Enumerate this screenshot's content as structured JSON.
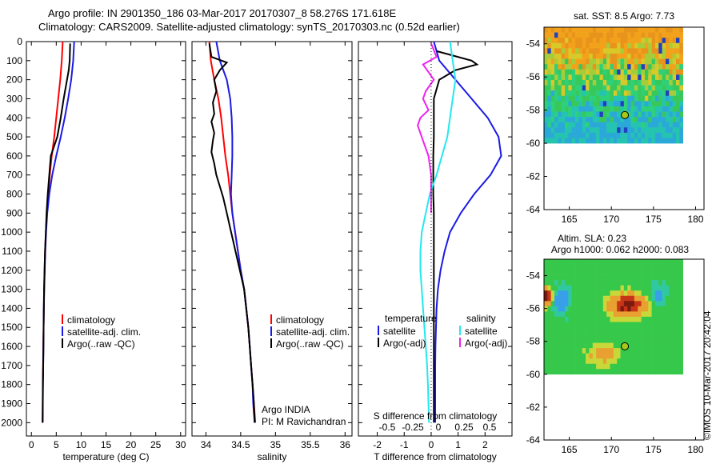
{
  "header": {
    "line1": "Argo profile: IN 2901350_186 03-Mar-2017 20170307_8 58.276S 171.618E",
    "line2": "Climatology: CARS2009. Satellite-adjusted climatology: synTS_20170303.nc (0.52d earlier)"
  },
  "colors": {
    "climatology": "#ff0000",
    "satellite": "#1a1ae6",
    "argo": "#000000",
    "sat_salinity": "#22e8ee",
    "argo_salinity_adj": "#ee22ee"
  },
  "depth_ticks": [
    0,
    100,
    200,
    300,
    400,
    500,
    600,
    700,
    800,
    900,
    1000,
    1100,
    1200,
    1300,
    1400,
    1500,
    1600,
    1700,
    1800,
    1900,
    2000
  ],
  "chart_data": [
    {
      "type": "line",
      "xlabel": "temperature (deg C)",
      "xlim": [
        -1,
        31
      ],
      "ylim": [
        2070,
        0
      ],
      "xticks": [
        0,
        5,
        10,
        15,
        20,
        25,
        30
      ],
      "legend": [
        "climatology",
        "satellite-adj. clim.",
        "Argo(..raw -QC)"
      ],
      "series": [
        {
          "name": "climatology",
          "color": "#ff0000",
          "x": [
            6.3,
            6.1,
            5.8,
            5.4,
            5.0,
            4.6,
            4.1,
            3.7,
            3.4,
            3.1,
            2.9,
            2.75,
            2.65,
            2.55,
            2.5,
            2.45,
            2.4,
            2.35,
            2.3,
            2.28,
            2.25
          ],
          "y": [
            0,
            100,
            200,
            300,
            400,
            500,
            600,
            700,
            800,
            900,
            1000,
            1100,
            1200,
            1300,
            1400,
            1500,
            1600,
            1700,
            1800,
            1900,
            2000
          ]
        },
        {
          "name": "satellite-adj. clim.",
          "color": "#1a1ae6",
          "x": [
            8.6,
            8.4,
            8.0,
            7.4,
            6.7,
            5.9,
            5.0,
            4.2,
            3.6,
            3.2,
            2.95,
            2.8,
            2.68,
            2.58,
            2.5,
            2.45,
            2.42,
            2.37,
            2.32,
            2.28,
            2.26
          ],
          "y": [
            0,
            100,
            200,
            300,
            400,
            500,
            600,
            700,
            800,
            900,
            1000,
            1100,
            1200,
            1300,
            1400,
            1500,
            1600,
            1700,
            1800,
            1900,
            2000
          ]
        },
        {
          "name": "Argo(..raw -QC)",
          "color": "#000000",
          "x": [
            7.8,
            7.7,
            7.5,
            6.5,
            5.9,
            5.2,
            3.9,
            3.6,
            3.3,
            3.05,
            2.9,
            2.75,
            2.65,
            2.55,
            2.5,
            2.45,
            2.42,
            2.38,
            2.33,
            2.3,
            2.27
          ],
          "y": [
            10,
            100,
            150,
            300,
            400,
            500,
            600,
            700,
            800,
            900,
            1000,
            1100,
            1200,
            1300,
            1400,
            1500,
            1600,
            1700,
            1800,
            1900,
            2000
          ]
        }
      ]
    },
    {
      "type": "line",
      "xlabel": "salinity",
      "xlim": [
        33.8,
        36.1
      ],
      "ylim": [
        2070,
        0
      ],
      "xticks": [
        34,
        34.5,
        35,
        35.5,
        36
      ],
      "legend": [
        "climatology",
        "satellite-adj. clim.",
        "Argo(..raw -QC)"
      ],
      "annotations": [
        "Argo INDIA",
        "PI: M Ravichandran"
      ],
      "series": [
        {
          "name": "climatology",
          "color": "#ff0000",
          "x": [
            34.05,
            34.07,
            34.12,
            34.18,
            34.22,
            34.25,
            34.28,
            34.32,
            34.35,
            34.38,
            34.42,
            34.46,
            34.5,
            34.55,
            34.58,
            34.61,
            34.63,
            34.65,
            34.67,
            34.69,
            34.71
          ],
          "y": [
            0,
            100,
            200,
            300,
            400,
            500,
            600,
            700,
            800,
            900,
            1000,
            1100,
            1200,
            1300,
            1400,
            1500,
            1600,
            1700,
            1800,
            1900,
            2000
          ]
        },
        {
          "name": "satellite-adj. clim.",
          "color": "#1a1ae6",
          "x": [
            34.15,
            34.2,
            34.3,
            34.35,
            34.37,
            34.38,
            34.38,
            34.37,
            34.36,
            34.38,
            34.42,
            34.46,
            34.5,
            34.55,
            34.58,
            34.61,
            34.63,
            34.65,
            34.67,
            34.68,
            34.7
          ],
          "y": [
            0,
            100,
            200,
            300,
            400,
            500,
            600,
            700,
            800,
            900,
            1000,
            1100,
            1200,
            1300,
            1400,
            1500,
            1600,
            1700,
            1800,
            1900,
            2000
          ]
        },
        {
          "name": "Argo(..raw -QC)",
          "color": "#000000",
          "x": [
            34.05,
            34.08,
            34.3,
            34.2,
            34.12,
            34.15,
            34.1,
            34.12,
            34.08,
            34.12,
            34.1,
            34.08,
            34.12,
            34.15,
            34.2,
            34.25,
            34.3,
            34.35,
            34.4,
            34.45,
            34.5,
            34.55,
            34.58,
            34.61,
            34.63,
            34.65,
            34.67,
            34.69,
            34.7
          ],
          "y": [
            10,
            80,
            110,
            150,
            200,
            260,
            320,
            380,
            420,
            480,
            520,
            580,
            640,
            700,
            760,
            820,
            900,
            980,
            1060,
            1140,
            1220,
            1300,
            1400,
            1500,
            1600,
            1700,
            1800,
            1900,
            2000
          ]
        }
      ]
    },
    {
      "type": "line",
      "xlabel": "T difference from climatology",
      "xlabel2": "S difference from climatology",
      "xlim": [
        -2.7,
        3.0
      ],
      "ylim": [
        2070,
        0
      ],
      "xticks": [
        -2,
        -1,
        0,
        1,
        2
      ],
      "xticks2": [
        "-0.5",
        "-0.25",
        "0",
        "0.25",
        "0.5"
      ],
      "legend": [
        "temperature",
        "satellite",
        "Argo(-adj)",
        "salinity",
        "satellite",
        "Argo(-adj)"
      ],
      "series": [
        {
          "name": "satellite",
          "color": "#1a1ae6",
          "x": [
            0.1,
            0.3,
            0.9,
            1.5,
            2.1,
            2.5,
            2.6,
            2.2,
            1.6,
            1.1,
            0.7,
            0.5,
            0.35,
            0.25,
            0.2,
            0.18,
            0.16,
            0.15,
            0.15,
            0.15,
            0.15
          ],
          "y": [
            0,
            100,
            200,
            300,
            400,
            500,
            600,
            700,
            800,
            900,
            1000,
            1100,
            1200,
            1300,
            1400,
            1500,
            1600,
            1700,
            1800,
            1900,
            2000
          ]
        },
        {
          "name": "Argo(-adj)",
          "color": "#000000",
          "x": [
            0.2,
            1.5,
            1.7,
            0.9,
            0.3,
            0.1,
            0.1,
            0.1,
            0.08,
            0.08,
            0.08,
            0.1,
            0.1,
            0.1,
            0.1,
            0.1,
            0.1,
            0.1,
            0.1,
            0.1
          ],
          "y": [
            50,
            100,
            120,
            150,
            200,
            300,
            400,
            500,
            600,
            700,
            800,
            900,
            1000,
            1200,
            1400,
            1600,
            1700,
            1800,
            1900,
            2000
          ]
        },
        {
          "name": "satellite",
          "color": "#22e8ee",
          "x": [
            0.7,
            0.8,
            0.9,
            0.8,
            0.7,
            0.6,
            0.4,
            0.2,
            -0.05,
            -0.2,
            -0.35,
            -0.4,
            -0.4,
            -0.35,
            -0.3,
            -0.25,
            -0.2,
            -0.15,
            -0.12,
            -0.1,
            -0.08
          ],
          "y": [
            0,
            100,
            200,
            300,
            400,
            500,
            600,
            700,
            800,
            900,
            1000,
            1100,
            1200,
            1300,
            1400,
            1500,
            1600,
            1700,
            1800,
            1900,
            2000
          ]
        },
        {
          "name": "Argo(-adj)",
          "color": "#ee22ee",
          "x": [
            0,
            0.2,
            -0.3,
            -0.1,
            0.1,
            -0.2,
            -0.3,
            -0.1,
            -0.4,
            -0.5,
            -0.3,
            -0.1,
            0.0,
            0.0,
            0.0
          ],
          "y": [
            10,
            80,
            120,
            160,
            200,
            260,
            300,
            360,
            400,
            440,
            520,
            600,
            700,
            800,
            900
          ]
        }
      ]
    },
    {
      "type": "heatmap",
      "title": "sat. SST: 8.5 Argo: 7.73",
      "xlim": [
        162,
        181
      ],
      "ylim": [
        -64,
        -53
      ],
      "xticks": [
        165,
        170,
        175,
        180
      ],
      "yticks": [
        -54,
        -56,
        -58,
        -60,
        -62,
        -64
      ],
      "marker": {
        "lon": 171.6,
        "lat": -58.3
      }
    },
    {
      "type": "heatmap",
      "title": "Altim. SLA: 0.23",
      "subtitle": "Argo h1000: 0.062 h2000: 0.083",
      "xlim": [
        162,
        181
      ],
      "ylim": [
        -64,
        -53
      ],
      "xticks": [
        165,
        170,
        175,
        180
      ],
      "yticks": [
        -54,
        -56,
        -58,
        -60,
        -62,
        -64
      ],
      "marker": {
        "lon": 171.6,
        "lat": -58.3
      }
    }
  ],
  "footer": {
    "credit": "©IMOS 10-Mar-2017 20:42:04"
  }
}
